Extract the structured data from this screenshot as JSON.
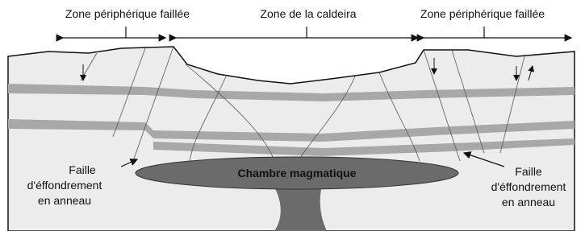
{
  "zones": [
    {
      "label": "Zone périphérique faillée"
    },
    {
      "label": "Zone de la caldeira"
    },
    {
      "label": "Zone périphérique faillée"
    }
  ],
  "chamber": {
    "label": "Chambre magmatique"
  },
  "faults": [
    {
      "lines": [
        "Faille",
        "d'éffondrement",
        "en anneau"
      ]
    },
    {
      "lines": [
        "Faille",
        "d'éffondrement",
        "en anneau"
      ]
    }
  ]
}
